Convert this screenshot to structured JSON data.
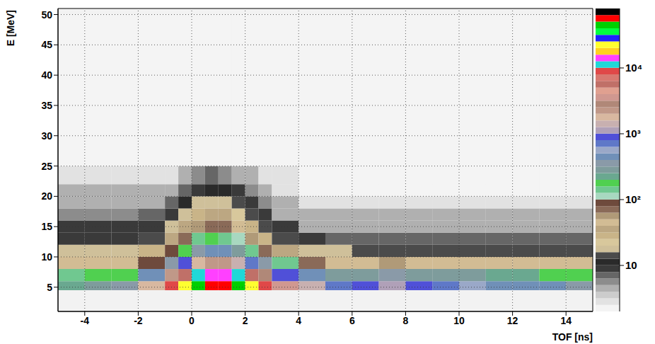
{
  "chart_data": {
    "type": "heatmap",
    "x_label": "TOF [ns]",
    "y_label": "E [MeV]",
    "xlim": [
      -5,
      15
    ],
    "xticks": [
      -4,
      -2,
      0,
      2,
      4,
      6,
      8,
      10,
      12,
      14
    ],
    "ylim": [
      1,
      51
    ],
    "yticks": [
      5,
      10,
      15,
      20,
      25,
      30,
      35,
      40,
      45,
      50
    ],
    "grid": true,
    "x_bins": [
      -5,
      -4,
      -3,
      -2,
      -1,
      -0.5,
      0,
      0.5,
      1,
      1.5,
      2,
      2.5,
      3,
      4,
      5,
      6,
      7,
      8,
      9,
      10,
      11,
      12,
      13,
      14,
      15
    ],
    "y_bins": [
      4.5,
      6,
      8,
      10,
      12,
      14,
      16,
      18,
      20,
      22,
      25,
      30,
      35,
      40,
      45,
      50
    ],
    "cells": [
      [
        250,
        300,
        350,
        1600,
        9500,
        24600,
        48700,
        60800,
        60900,
        43000,
        22000,
        10000,
        3900,
        1400,
        700,
        900,
        1100,
        900,
        700,
        600,
        500,
        450,
        400,
        350
      ],
      [
        150,
        170,
        190,
        500,
        2450,
        6200,
        12200,
        15200,
        15200,
        10800,
        5500,
        2550,
        1000,
        400,
        300,
        300,
        350,
        300,
        280,
        260,
        240,
        220,
        200,
        180
      ],
      [
        45,
        50,
        50,
        90,
        350,
        850,
        1650,
        2050,
        2050,
        1450,
        750,
        350,
        150,
        70,
        50,
        50,
        55,
        50,
        50,
        50,
        45,
        45,
        45,
        45
      ],
      [
        20,
        20,
        20,
        28,
        80,
        180,
        340,
        420,
        420,
        300,
        155,
        75,
        35,
        19,
        16,
        15,
        15,
        15,
        15,
        15,
        15,
        15,
        15,
        15
      ],
      [
        10,
        10,
        10,
        13,
        32,
        70,
        130,
        160,
        157,
        112,
        60,
        30,
        15,
        8,
        7,
        7,
        7,
        7,
        7,
        7,
        7,
        7,
        7,
        7
      ],
      [
        8,
        8,
        8,
        9,
        17,
        32,
        56,
        68,
        65,
        47,
        26,
        14,
        8,
        5,
        5,
        5,
        5,
        5,
        5,
        5,
        5,
        5,
        5,
        5
      ],
      [
        6,
        6,
        6,
        7,
        10,
        18,
        30,
        36,
        34,
        25,
        15,
        8,
        5,
        4,
        4,
        4,
        4,
        4,
        4,
        4,
        4,
        4,
        4,
        4
      ],
      [
        5,
        5,
        5,
        5,
        7,
        11,
        17,
        20,
        18,
        14,
        9,
        6,
        4,
        3,
        3,
        3,
        3,
        3,
        3,
        3,
        3,
        3,
        3,
        3
      ],
      [
        4,
        4,
        4,
        4,
        5,
        7,
        10,
        12,
        11,
        8,
        6,
        4,
        3,
        2.5,
        2.5,
        2.5,
        2.5,
        2.5,
        2.5,
        2.5,
        2.5,
        2.5,
        2.5,
        2.5
      ],
      [
        3,
        3,
        3,
        3,
        3,
        4,
        6,
        7,
        6,
        5,
        4,
        3,
        3,
        2.5,
        2.5,
        2.5,
        2.5,
        2.5,
        2.5,
        2.5,
        2.5,
        2.5,
        2.5,
        2.5
      ],
      [
        2,
        2,
        2,
        2,
        2,
        2,
        2,
        2,
        2,
        2,
        2,
        2,
        2,
        2,
        2,
        2,
        2,
        2,
        2,
        2,
        2,
        2,
        2,
        2
      ],
      [
        2,
        2,
        2,
        2,
        2,
        2,
        2,
        2,
        2,
        2,
        2,
        2,
        2,
        2,
        2,
        2,
        2,
        2,
        2,
        2,
        2,
        2,
        2,
        2
      ],
      [
        2,
        2,
        2,
        2,
        2,
        2,
        2,
        2,
        2,
        2,
        2,
        2,
        2,
        2,
        2,
        2,
        2,
        2,
        2,
        2,
        2,
        2,
        2,
        2
      ],
      [
        2,
        2,
        2,
        2,
        2,
        2,
        2,
        2,
        2,
        2,
        2,
        2,
        2,
        2,
        2,
        2,
        2,
        2,
        2,
        2,
        2,
        2,
        2,
        2
      ],
      [
        2,
        2,
        2,
        2,
        2,
        2,
        2,
        2,
        2,
        2,
        2,
        2,
        2,
        2,
        2,
        2,
        2,
        2,
        2,
        2,
        2,
        2,
        2,
        2
      ]
    ],
    "colorbar_range": [
      2,
      80000
    ],
    "colorbar_ticks": [
      10,
      {
        "value": 100,
        "label": "10²"
      },
      {
        "value": 1000,
        "label": "10³"
      },
      {
        "value": 10000,
        "label": "10⁴"
      }
    ]
  }
}
